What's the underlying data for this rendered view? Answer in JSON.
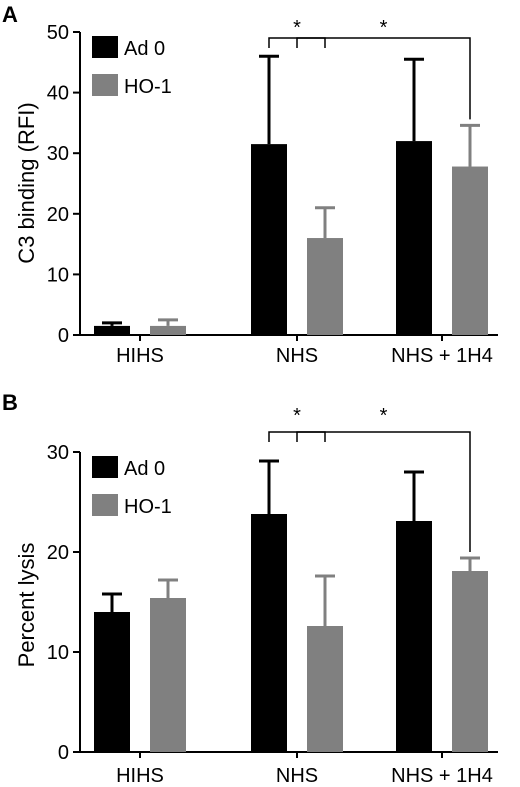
{
  "chart_data": [
    {
      "panel": "A",
      "type": "bar",
      "categories": [
        "HIHS",
        "NHS",
        "NHS + 1H4"
      ],
      "ylabel": "C3 binding (RFI)",
      "xlabel": "",
      "ylim": [
        0,
        50
      ],
      "yticks": [
        0,
        10,
        20,
        30,
        40,
        50
      ],
      "legend_position": "top-left",
      "series": [
        {
          "name": "Ad 0",
          "color": "#000000",
          "values": [
            1.5,
            31.5,
            32
          ],
          "errors": [
            0.5,
            14.5,
            13.5
          ]
        },
        {
          "name": "HO-1",
          "color": "#808080",
          "values": [
            1.5,
            16,
            27.8
          ],
          "errors": [
            1.0,
            5,
            6.8
          ]
        }
      ],
      "significance": [
        {
          "label": "*",
          "from": [
            1,
            0
          ],
          "to": [
            1,
            1
          ]
        },
        {
          "label": "*",
          "from": [
            1,
            1
          ],
          "to": [
            2,
            1
          ]
        }
      ]
    },
    {
      "panel": "B",
      "type": "bar",
      "categories": [
        "HIHS",
        "NHS",
        "NHS + 1H4"
      ],
      "ylabel": "Percent lysis",
      "xlabel": "",
      "ylim": [
        0,
        30
      ],
      "yticks": [
        0,
        10,
        20,
        30
      ],
      "legend_position": "top-left",
      "series": [
        {
          "name": "Ad 0",
          "color": "#000000",
          "values": [
            14,
            23.8,
            23.1
          ],
          "errors": [
            1.8,
            5.3,
            4.9
          ]
        },
        {
          "name": "HO-1",
          "color": "#808080",
          "values": [
            15.4,
            12.6,
            18.1
          ],
          "errors": [
            1.8,
            5,
            1.3
          ]
        }
      ],
      "significance": [
        {
          "label": "*",
          "from": [
            1,
            0
          ],
          "to": [
            1,
            1
          ]
        },
        {
          "label": "*",
          "from": [
            1,
            1
          ],
          "to": [
            2,
            1
          ]
        }
      ]
    }
  ]
}
